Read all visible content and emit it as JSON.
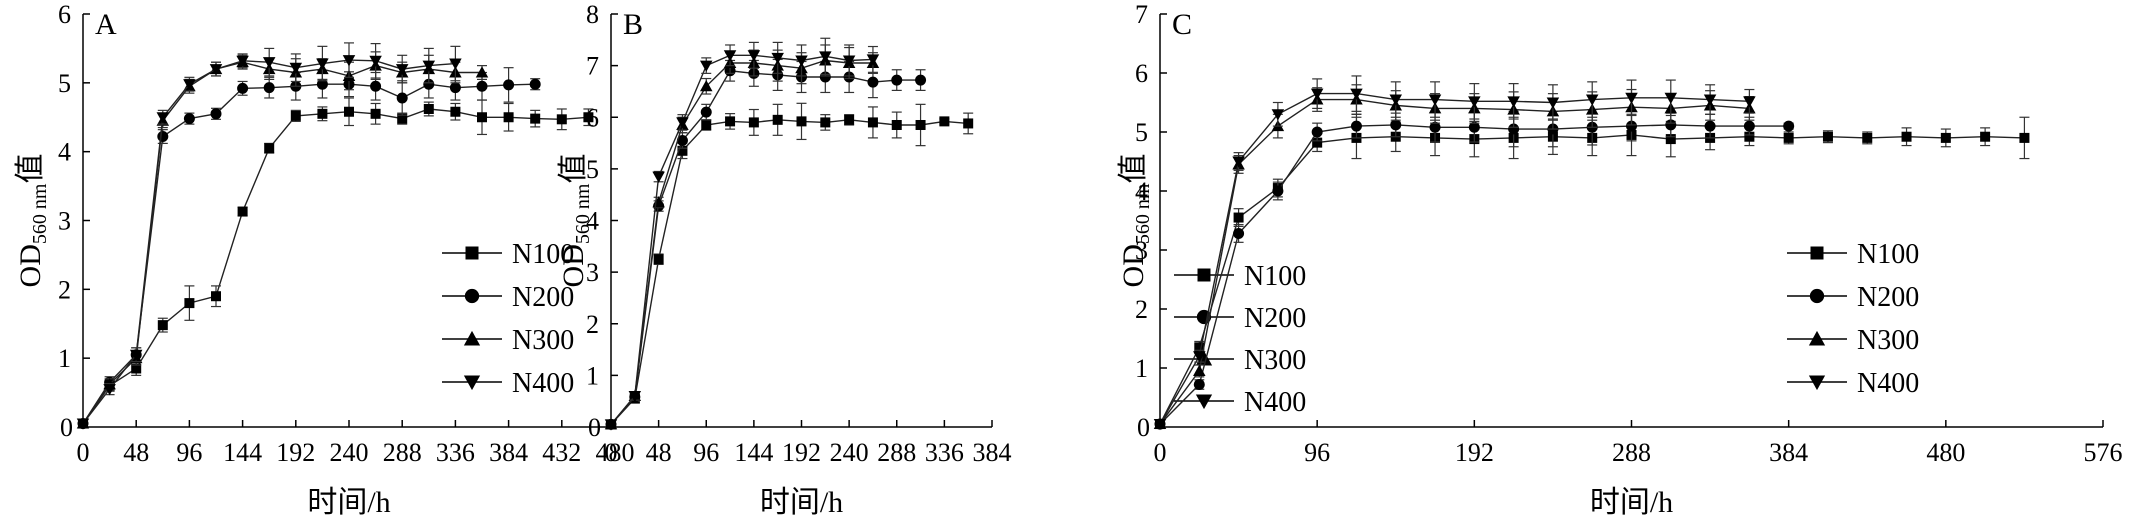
{
  "chart_data": [
    {
      "type": "line",
      "panel_label": "A",
      "xlabel": "时间/h",
      "ylabel": {
        "main": "OD",
        "sub": "560 nm",
        "suffix": "值"
      },
      "xlim": [
        0,
        480
      ],
      "ylim": [
        0,
        6
      ],
      "xticks": [
        0,
        48,
        96,
        144,
        192,
        240,
        288,
        336,
        384,
        432,
        480
      ],
      "yticks": [
        1,
        2,
        3,
        4,
        5,
        6
      ],
      "legend": "center-right",
      "series": [
        {
          "name": "N100",
          "marker": "square",
          "x": [
            0,
            24,
            48,
            72,
            96,
            120,
            144,
            168,
            192,
            216,
            240,
            264,
            288,
            312,
            336,
            360,
            384,
            408,
            432,
            456
          ],
          "y": [
            0.05,
            0.6,
            0.85,
            1.48,
            1.8,
            1.9,
            3.13,
            4.05,
            4.52,
            4.55,
            4.58,
            4.55,
            4.48,
            4.62,
            4.58,
            4.5,
            4.5,
            4.48,
            4.47,
            4.5
          ],
          "err": [
            0,
            0.08,
            0.1,
            0.1,
            0.25,
            0.15,
            0.06,
            0.07,
            0.08,
            0.1,
            0.2,
            0.15,
            0.08,
            0.1,
            0.12,
            0.25,
            0.2,
            0.12,
            0.15,
            0.12
          ]
        },
        {
          "name": "N200",
          "marker": "circle",
          "x": [
            0,
            24,
            48,
            72,
            96,
            120,
            144,
            168,
            192,
            216,
            240,
            264,
            288,
            312,
            336,
            360,
            384,
            408
          ],
          "y": [
            0.05,
            0.65,
            1.05,
            4.22,
            4.48,
            4.55,
            4.92,
            4.93,
            4.95,
            4.98,
            4.98,
            4.95,
            4.78,
            4.98,
            4.93,
            4.95,
            4.97,
            4.98
          ],
          "err": [
            0,
            0.08,
            0.1,
            0.1,
            0.08,
            0.08,
            0.1,
            0.15,
            0.2,
            0.2,
            0.18,
            0.2,
            0.25,
            0.2,
            0.18,
            0.2,
            0.25,
            0.08
          ]
        },
        {
          "name": "N300",
          "marker": "triangle-up",
          "x": [
            0,
            24,
            48,
            72,
            96,
            120,
            144,
            168,
            192,
            216,
            240,
            264,
            288,
            312,
            336,
            360
          ],
          "y": [
            0.05,
            0.62,
            1.0,
            4.45,
            4.95,
            5.2,
            5.3,
            5.2,
            5.15,
            5.2,
            5.1,
            5.25,
            5.15,
            5.2,
            5.15,
            5.15
          ],
          "err": [
            0,
            0.08,
            0.1,
            0.1,
            0.1,
            0.1,
            0.1,
            0.15,
            0.2,
            0.15,
            0.2,
            0.2,
            0.15,
            0.2,
            0.15,
            0.1
          ]
        },
        {
          "name": "N400",
          "marker": "triangle-down",
          "x": [
            0,
            24,
            48,
            72,
            96,
            120,
            144,
            168,
            192,
            216,
            240,
            264,
            288,
            312,
            336
          ],
          "y": [
            0.05,
            0.55,
            1.05,
            4.5,
            4.98,
            5.2,
            5.32,
            5.3,
            5.22,
            5.28,
            5.33,
            5.32,
            5.2,
            5.25,
            5.28
          ],
          "err": [
            0,
            0.08,
            0.1,
            0.1,
            0.1,
            0.1,
            0.1,
            0.2,
            0.2,
            0.25,
            0.25,
            0.25,
            0.2,
            0.25,
            0.25
          ]
        }
      ]
    },
    {
      "type": "line",
      "panel_label": "B",
      "xlabel": "时间/h",
      "ylabel": {
        "main": "OD",
        "sub": "560 nm",
        "suffix": "值"
      },
      "xlim": [
        0,
        384
      ],
      "ylim": [
        0,
        8
      ],
      "xticks": [
        0,
        48,
        96,
        144,
        192,
        240,
        288,
        336,
        384
      ],
      "yticks": [
        1,
        2,
        3,
        4,
        5,
        6,
        7,
        8
      ],
      "legend": "bottom-right",
      "series": [
        {
          "name": "N100",
          "marker": "square",
          "x": [
            0,
            24,
            48,
            72,
            96,
            120,
            144,
            168,
            192,
            216,
            240,
            264,
            288,
            312,
            336,
            360
          ],
          "y": [
            0.05,
            0.55,
            3.25,
            5.35,
            5.85,
            5.92,
            5.9,
            5.95,
            5.92,
            5.9,
            5.95,
            5.9,
            5.85,
            5.85,
            5.92,
            5.88
          ],
          "err": [
            0,
            0.08,
            0.1,
            0.15,
            0.1,
            0.15,
            0.25,
            0.3,
            0.35,
            0.15,
            0.1,
            0.3,
            0.25,
            0.4,
            0.05,
            0.2
          ]
        },
        {
          "name": "N200",
          "marker": "circle",
          "x": [
            0,
            24,
            48,
            72,
            96,
            120,
            144,
            168,
            192,
            216,
            240,
            264,
            288,
            312
          ],
          "y": [
            0.05,
            0.58,
            4.28,
            5.55,
            6.1,
            6.9,
            6.85,
            6.82,
            6.78,
            6.78,
            6.78,
            6.68,
            6.72,
            6.72
          ],
          "err": [
            0,
            0.08,
            0.1,
            0.15,
            0.15,
            0.2,
            0.25,
            0.3,
            0.3,
            0.3,
            0.3,
            0.3,
            0.2,
            0.2
          ]
        },
        {
          "name": "N300",
          "marker": "triangle-up",
          "x": [
            0,
            24,
            48,
            72,
            96,
            120,
            144,
            168,
            192,
            216,
            240,
            264
          ],
          "y": [
            0.05,
            0.6,
            4.35,
            5.85,
            6.6,
            7.05,
            7.05,
            7.0,
            6.95,
            7.1,
            7.05,
            7.05
          ],
          "err": [
            0,
            0.08,
            0.1,
            0.15,
            0.15,
            0.2,
            0.25,
            0.3,
            0.3,
            0.3,
            0.3,
            0.2
          ]
        },
        {
          "name": "N400",
          "marker": "triangle-down",
          "x": [
            0,
            24,
            48,
            72,
            96,
            120,
            144,
            168,
            192,
            216,
            240,
            264
          ],
          "y": [
            0.05,
            0.6,
            4.85,
            5.9,
            7.0,
            7.2,
            7.2,
            7.15,
            7.1,
            7.18,
            7.1,
            7.12
          ],
          "err": [
            0,
            0.08,
            0.1,
            0.15,
            0.15,
            0.2,
            0.25,
            0.3,
            0.3,
            0.35,
            0.3,
            0.25
          ]
        }
      ]
    },
    {
      "type": "line",
      "panel_label": "C",
      "xlabel": "时间/h",
      "ylabel": {
        "main": "OD",
        "sub": "560 nm",
        "suffix": "值"
      },
      "xlim": [
        0,
        576
      ],
      "ylim": [
        0,
        7
      ],
      "xticks": [
        0,
        96,
        192,
        288,
        384,
        480,
        576
      ],
      "yticks": [
        1,
        2,
        3,
        4,
        5,
        6,
        7
      ],
      "legend": "center-right",
      "series": [
        {
          "name": "N100",
          "marker": "square",
          "x": [
            0,
            24,
            48,
            72,
            96,
            120,
            144,
            168,
            192,
            216,
            240,
            264,
            288,
            312,
            336,
            360,
            384,
            408,
            432,
            456,
            480,
            504,
            528
          ],
          "y": [
            0.05,
            1.35,
            3.55,
            4.05,
            4.82,
            4.9,
            4.92,
            4.9,
            4.88,
            4.9,
            4.92,
            4.9,
            4.95,
            4.88,
            4.9,
            4.92,
            4.9,
            4.92,
            4.9,
            4.92,
            4.9,
            4.92,
            4.9
          ],
          "err": [
            0,
            0.1,
            0.15,
            0.15,
            0.15,
            0.35,
            0.25,
            0.3,
            0.3,
            0.35,
            0.3,
            0.3,
            0.35,
            0.3,
            0.2,
            0.15,
            0.1,
            0.1,
            0.1,
            0.15,
            0.15,
            0.15,
            0.35
          ]
        },
        {
          "name": "N200",
          "marker": "circle",
          "x": [
            0,
            24,
            48,
            72,
            96,
            120,
            144,
            168,
            192,
            216,
            240,
            264,
            288,
            312,
            336,
            360,
            384
          ],
          "y": [
            0.05,
            0.72,
            3.28,
            4.0,
            5.0,
            5.1,
            5.12,
            5.08,
            5.08,
            5.05,
            5.05,
            5.08,
            5.1,
            5.12,
            5.1,
            5.1,
            5.1
          ],
          "err": [
            0,
            0.08,
            0.15,
            0.15,
            0.15,
            0.2,
            0.2,
            0.25,
            0.25,
            0.3,
            0.3,
            0.3,
            0.25,
            0.2,
            0.2,
            0.15,
            0.05
          ]
        },
        {
          "name": "N300",
          "marker": "triangle-up",
          "x": [
            0,
            24,
            48,
            72,
            96,
            120,
            144,
            168,
            192,
            216,
            240,
            264,
            288,
            312,
            336,
            360
          ],
          "y": [
            0.05,
            0.95,
            4.45,
            5.1,
            5.55,
            5.55,
            5.45,
            5.4,
            5.4,
            5.38,
            5.35,
            5.38,
            5.42,
            5.4,
            5.45,
            5.4
          ],
          "err": [
            0,
            0.1,
            0.15,
            0.2,
            0.2,
            0.25,
            0.25,
            0.25,
            0.25,
            0.3,
            0.3,
            0.3,
            0.3,
            0.25,
            0.25,
            0.2
          ]
        },
        {
          "name": "N400",
          "marker": "triangle-down",
          "x": [
            0,
            24,
            48,
            72,
            96,
            120,
            144,
            168,
            192,
            216,
            240,
            264,
            288,
            312,
            336,
            360
          ],
          "y": [
            0.05,
            1.2,
            4.5,
            5.3,
            5.65,
            5.65,
            5.55,
            5.55,
            5.52,
            5.52,
            5.5,
            5.55,
            5.58,
            5.58,
            5.55,
            5.52
          ],
          "err": [
            0,
            0.1,
            0.15,
            0.2,
            0.25,
            0.3,
            0.3,
            0.3,
            0.3,
            0.3,
            0.3,
            0.3,
            0.3,
            0.3,
            0.25,
            0.2
          ]
        }
      ]
    }
  ]
}
